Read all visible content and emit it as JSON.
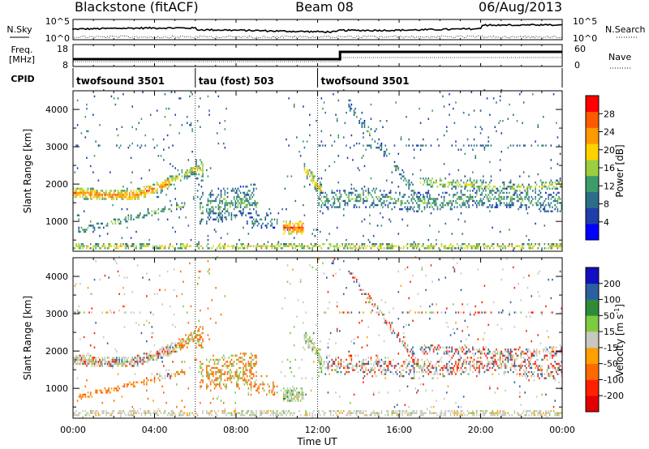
{
  "header": {
    "station": "Blackstone (fitACF)",
    "beam": "Beam 08",
    "date": "06/Aug/2013"
  },
  "noise_panel": {
    "left_label": "N.Sky",
    "right_label": "N.Search",
    "left_ticks": [
      "10^5",
      "10^0"
    ],
    "right_ticks": [
      "10^5",
      "10^0"
    ]
  },
  "freq_panel": {
    "left_label_line1": "Freq.",
    "left_label_line2": "[MHz]",
    "left_ticks": [
      "18",
      "8"
    ],
    "right_label": "Nave",
    "right_ticks": [
      "60",
      "0"
    ]
  },
  "cpid": {
    "label": "CPID",
    "segments": [
      {
        "start_h": 0,
        "end_h": 6,
        "name": "twofsound 3501"
      },
      {
        "start_h": 6,
        "end_h": 12,
        "name": "tau (fost) 503"
      },
      {
        "start_h": 12,
        "end_h": 24,
        "name": "twofsound 3501"
      }
    ]
  },
  "chart_data": [
    {
      "type": "heatmap",
      "name": "power",
      "ylabel": "Slant Range [km]",
      "ylim": [
        200,
        4500
      ],
      "yticks": [
        "1000",
        "2000",
        "3000",
        "4000"
      ],
      "xlim_h": [
        0,
        24
      ],
      "colorbar": {
        "label": "Power [dB]",
        "ticks": [
          "28",
          "24",
          "20",
          "16",
          "12",
          "8",
          "4"
        ],
        "colors": [
          "#0000ff",
          "#1f3fa8",
          "#2c6e8a",
          "#3d9b6a",
          "#9bcf3f",
          "#ffd200",
          "#ff9900",
          "#ff5a00",
          "#ff0000"
        ]
      }
    },
    {
      "type": "heatmap",
      "name": "velocity",
      "ylabel": "Slant Range [km]",
      "ylim": [
        200,
        4500
      ],
      "yticks": [
        "1000",
        "2000",
        "3000",
        "4000"
      ],
      "xlim_h": [
        0,
        24
      ],
      "xlabel": "Time UT",
      "xticks": [
        "00:00",
        "04:00",
        "08:00",
        "12:00",
        "16:00",
        "20:00",
        "00:00"
      ],
      "colorbar": {
        "label_main": "Velocity [m s",
        "label_sup": "-1",
        "label_end": "]",
        "ticks": [
          "200",
          "100",
          "50",
          "15",
          "-15",
          "-50",
          "-100",
          "-200"
        ],
        "colors": [
          "#1010c0",
          "#2a60a0",
          "#2f8a3a",
          "#7ecb40",
          "#c8c8c0",
          "#ffa000",
          "#ff6a00",
          "#ff2000",
          "#e00000"
        ]
      }
    }
  ]
}
